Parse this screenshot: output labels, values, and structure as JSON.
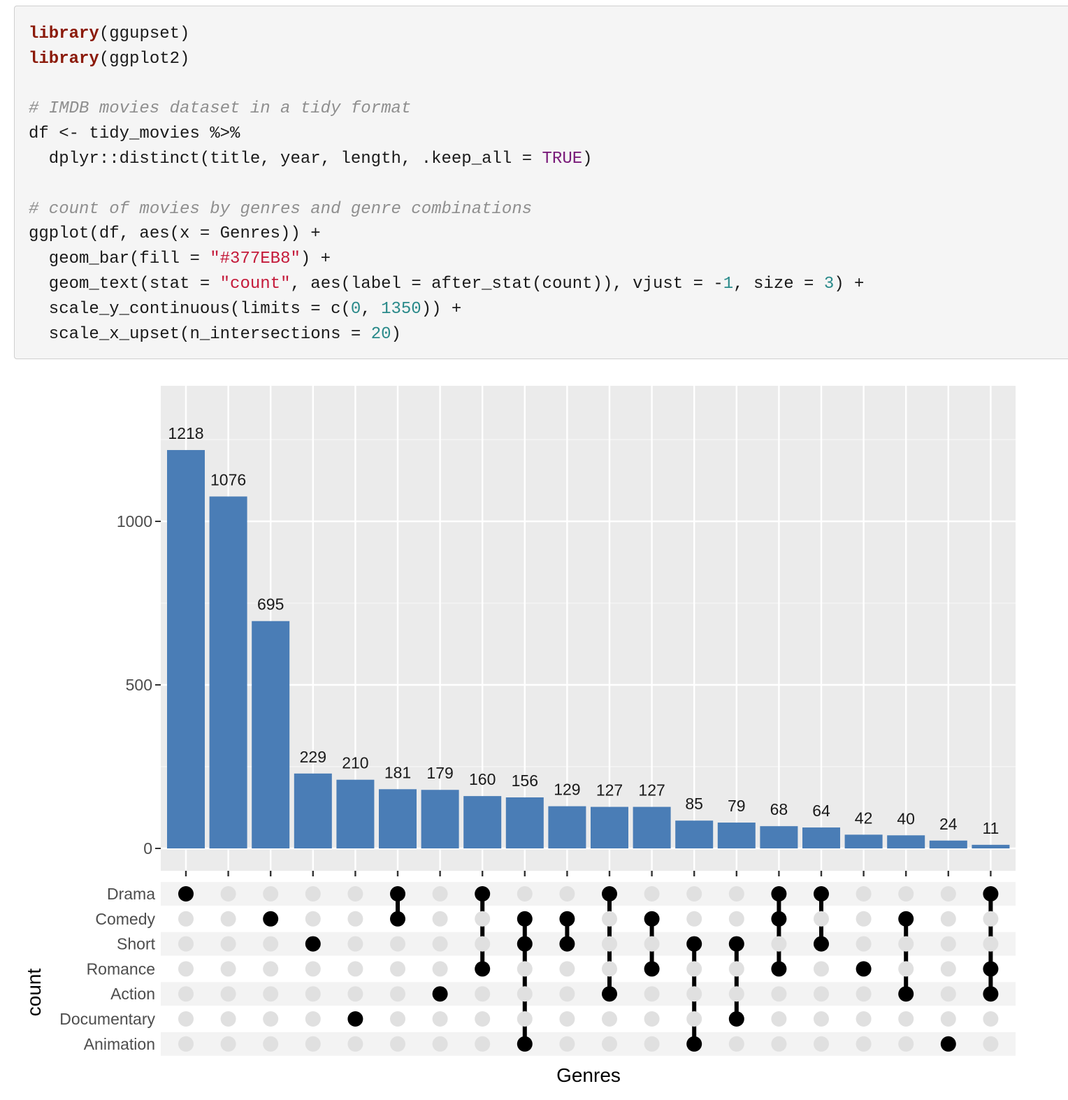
{
  "code": {
    "lines": [
      [
        {
          "t": "library",
          "c": "fn"
        },
        {
          "t": "(ggupset)",
          "c": "pl"
        }
      ],
      [
        {
          "t": "library",
          "c": "fn"
        },
        {
          "t": "(ggplot2)",
          "c": "pl"
        }
      ],
      [],
      [
        {
          "t": "# IMDB movies dataset in a tidy format",
          "c": "cm"
        }
      ],
      [
        {
          "t": "df <- tidy_movies %>%",
          "c": "pl"
        }
      ],
      [
        {
          "t": "  dplyr::distinct(title, year, length, .keep_all = ",
          "c": "pl"
        },
        {
          "t": "TRUE",
          "c": "kw"
        },
        {
          "t": ")",
          "c": "pl"
        }
      ],
      [],
      [
        {
          "t": "# count of movies by genres and genre combinations",
          "c": "cm"
        }
      ],
      [
        {
          "t": "ggplot(df, aes(x = Genres)) +",
          "c": "pl"
        }
      ],
      [
        {
          "t": "  geom_bar(fill = ",
          "c": "pl"
        },
        {
          "t": "\"#377EB8\"",
          "c": "str"
        },
        {
          "t": ") +",
          "c": "pl"
        }
      ],
      [
        {
          "t": "  geom_text(stat = ",
          "c": "pl"
        },
        {
          "t": "\"count\"",
          "c": "str"
        },
        {
          "t": ", aes(label = after_stat(count)), vjust = -",
          "c": "pl"
        },
        {
          "t": "1",
          "c": "num"
        },
        {
          "t": ", size = ",
          "c": "pl"
        },
        {
          "t": "3",
          "c": "num"
        },
        {
          "t": ") +",
          "c": "pl"
        }
      ],
      [
        {
          "t": "  scale_y_continuous(limits = c(",
          "c": "pl"
        },
        {
          "t": "0",
          "c": "num"
        },
        {
          "t": ", ",
          "c": "pl"
        },
        {
          "t": "1350",
          "c": "num"
        },
        {
          "t": ")) +",
          "c": "pl"
        }
      ],
      [
        {
          "t": "  scale_x_upset(n_intersections = ",
          "c": "pl"
        },
        {
          "t": "20",
          "c": "num"
        },
        {
          "t": ")",
          "c": "pl"
        }
      ]
    ]
  },
  "chart_data": {
    "type": "bar",
    "variant": "upset",
    "title": "",
    "xlabel": "Genres",
    "ylabel": "count",
    "ylim": [
      0,
      1350
    ],
    "yticks": [
      0,
      500,
      1000
    ],
    "grid": true,
    "bar_color": "#4a7db6",
    "sets": [
      "Drama",
      "Comedy",
      "Short",
      "Romance",
      "Action",
      "Documentary",
      "Animation"
    ],
    "intersections": [
      {
        "sets": [
          "Drama"
        ],
        "value": 1218
      },
      {
        "sets": [],
        "value": 1076
      },
      {
        "sets": [
          "Comedy"
        ],
        "value": 695
      },
      {
        "sets": [
          "Short"
        ],
        "value": 229
      },
      {
        "sets": [
          "Documentary"
        ],
        "value": 210
      },
      {
        "sets": [
          "Drama",
          "Comedy"
        ],
        "value": 181
      },
      {
        "sets": [
          "Action"
        ],
        "value": 179
      },
      {
        "sets": [
          "Drama",
          "Romance"
        ],
        "value": 160
      },
      {
        "sets": [
          "Comedy",
          "Short",
          "Animation"
        ],
        "value": 156
      },
      {
        "sets": [
          "Comedy",
          "Short"
        ],
        "value": 129
      },
      {
        "sets": [
          "Drama",
          "Action"
        ],
        "value": 127
      },
      {
        "sets": [
          "Comedy",
          "Romance"
        ],
        "value": 127
      },
      {
        "sets": [
          "Short",
          "Animation"
        ],
        "value": 85
      },
      {
        "sets": [
          "Short",
          "Documentary"
        ],
        "value": 79
      },
      {
        "sets": [
          "Drama",
          "Comedy",
          "Romance"
        ],
        "value": 68
      },
      {
        "sets": [
          "Drama",
          "Short"
        ],
        "value": 64
      },
      {
        "sets": [
          "Romance"
        ],
        "value": 42
      },
      {
        "sets": [
          "Comedy",
          "Action"
        ],
        "value": 40
      },
      {
        "sets": [
          "Animation"
        ],
        "value": 24
      },
      {
        "sets": [
          "Drama",
          "Romance",
          "Action"
        ],
        "value": 11
      }
    ]
  }
}
